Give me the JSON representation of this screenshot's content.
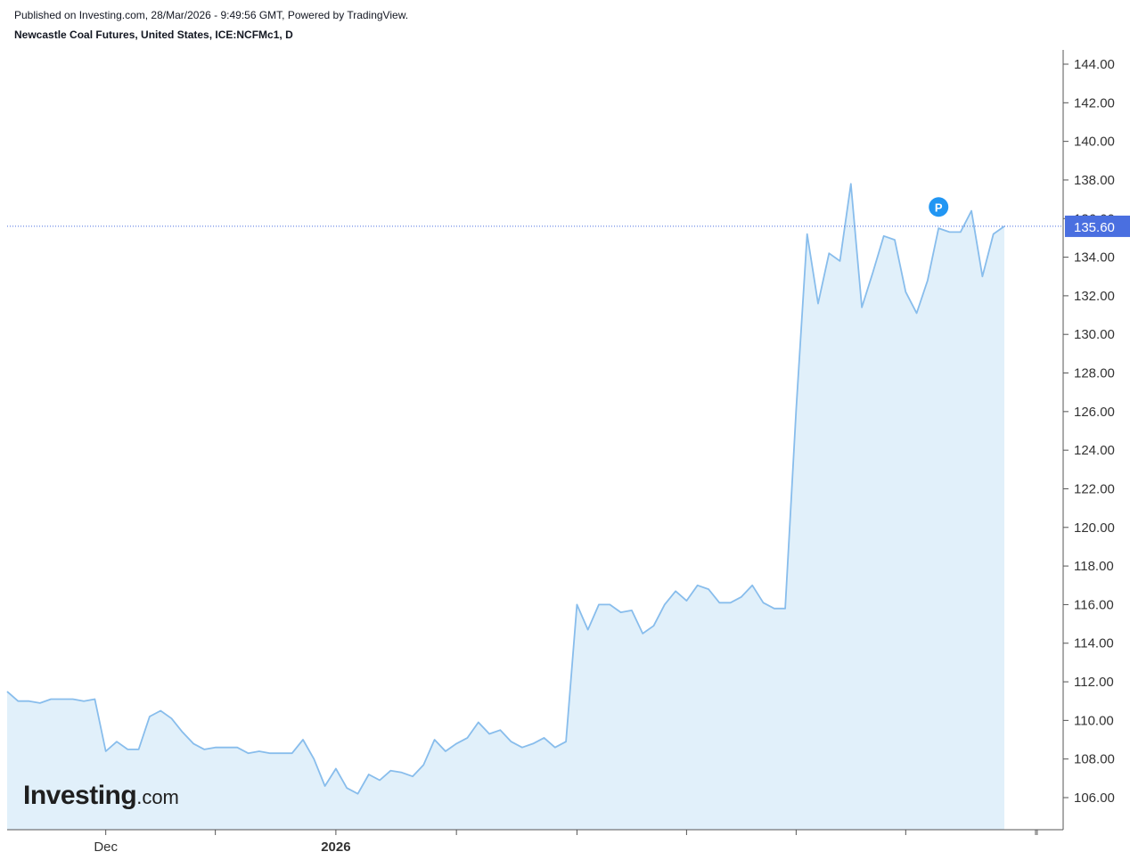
{
  "header": {
    "published": "Published on Investing.com, 28/Mar/2026 - 9:49:56 GMT, Powered by TradingView.",
    "symbol": "Newcastle Coal Futures, United States, ICE:NCFMc1, D"
  },
  "logo": {
    "main": "Investing",
    "sub": ".com"
  },
  "colors": {
    "line": "#88bdec",
    "area": "#e1f0fa",
    "price_badge": "#4a6fe0",
    "marker": "#2196f3",
    "axis": "#555555"
  },
  "chart_data": {
    "type": "area",
    "title": "Newcastle Coal Futures, United States, ICE:NCFMc1, D",
    "xlabel": "",
    "ylabel": "",
    "ylim": [
      104.5,
      144.6
    ],
    "grid": false,
    "y_ticks": [
      "106.00",
      "108.00",
      "110.00",
      "112.00",
      "114.00",
      "116.00",
      "118.00",
      "120.00",
      "122.00",
      "124.00",
      "126.00",
      "128.00",
      "130.00",
      "132.00",
      "134.00",
      "136.00",
      "138.00",
      "140.00",
      "142.00",
      "144.00"
    ],
    "x_labels": [
      {
        "label": "Dec",
        "index": 9,
        "bold": false
      },
      {
        "label": "2026",
        "index": 30,
        "bold": true
      }
    ],
    "x_tick_indices": [
      9,
      19,
      30,
      41,
      52,
      62,
      72,
      82,
      94
    ],
    "current_price": "135.60",
    "marker_label": "P",
    "marker": {
      "index": 85,
      "value": 136.6
    },
    "series": [
      {
        "values": [
          111.5,
          111.0,
          111.0,
          110.9,
          111.1,
          111.1,
          111.1,
          111.0,
          111.1,
          108.4,
          108.9,
          108.5,
          108.5,
          110.2,
          110.5,
          110.1,
          109.4,
          108.8,
          108.5,
          108.6,
          108.6,
          108.6,
          108.3,
          108.4,
          108.3,
          108.3,
          108.3,
          109.0,
          108.0,
          106.6,
          107.5,
          106.5,
          106.2,
          107.2,
          106.9,
          107.4,
          107.3,
          107.1,
          107.7,
          109.0,
          108.4,
          108.8,
          109.1,
          109.9,
          109.3,
          109.5,
          108.9,
          108.6,
          108.8,
          109.1,
          108.6,
          108.9,
          116.0,
          114.7,
          116.0,
          116.0,
          115.6,
          115.7,
          114.5,
          114.9,
          116.0,
          116.7,
          116.2,
          117.0,
          116.8,
          116.1,
          116.1,
          116.4,
          117.0,
          116.1,
          115.8,
          115.8,
          126.1,
          135.2,
          131.6,
          134.2,
          133.8,
          137.8,
          131.4,
          133.2,
          135.1,
          134.9,
          132.2,
          131.1,
          132.8,
          135.5,
          135.3,
          135.3,
          136.4,
          133.0,
          135.2,
          135.6
        ]
      }
    ]
  }
}
